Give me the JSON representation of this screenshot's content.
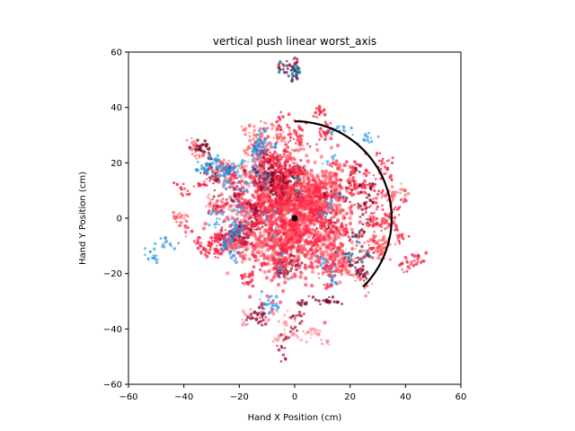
{
  "chart_data": {
    "type": "scatter",
    "title": "vertical push linear worst_axis",
    "xlabel": "Hand X Position (cm)",
    "ylabel": "Hand Y Position (cm)",
    "xlim": [
      -60,
      60
    ],
    "ylim": [
      -60,
      60
    ],
    "xticks": [
      -60,
      -40,
      -20,
      0,
      20,
      40,
      60
    ],
    "yticks": [
      -60,
      -40,
      -20,
      0,
      20,
      40,
      60
    ],
    "xtick_labels": [
      "−60",
      "−40",
      "−20",
      "0",
      "20",
      "40",
      "60"
    ],
    "ytick_labels": [
      "−60",
      "−40",
      "−20",
      "0",
      "20",
      "40",
      "60"
    ],
    "grid": false,
    "colors": {
      "red_bright": "#ff2244",
      "red_salmon": "#ff5a5f",
      "red_pink": "#ff8090",
      "crimson_dark": "#a00a30",
      "maroon": "#7a0022",
      "blue": "#1f8fe0",
      "blue_dark": "#0f5a80",
      "trajectory_line": "#000000",
      "origin_marker": "#000000"
    },
    "origin_point": {
      "x": 0,
      "y": 0
    },
    "target_arc": {
      "center": [
        0,
        0
      ],
      "radius": 35,
      "start_angle_deg": 90,
      "end_angle_deg": -45,
      "endpoints": [
        [
          0,
          35
        ],
        [
          25,
          -25
        ]
      ]
    },
    "cloud": {
      "center": [
        0,
        0
      ],
      "spread_sd_cm": 18,
      "max_extent_cm": 58,
      "series": [
        {
          "color_key": "red_bright",
          "share": 0.35
        },
        {
          "color_key": "red_salmon",
          "share": 0.22
        },
        {
          "color_key": "red_pink",
          "share": 0.1
        },
        {
          "color_key": "crimson_dark",
          "share": 0.12
        },
        {
          "color_key": "maroon",
          "share": 0.06
        },
        {
          "color_key": "blue",
          "share": 0.13
        },
        {
          "color_key": "blue_dark",
          "share": 0.02
        }
      ]
    }
  }
}
